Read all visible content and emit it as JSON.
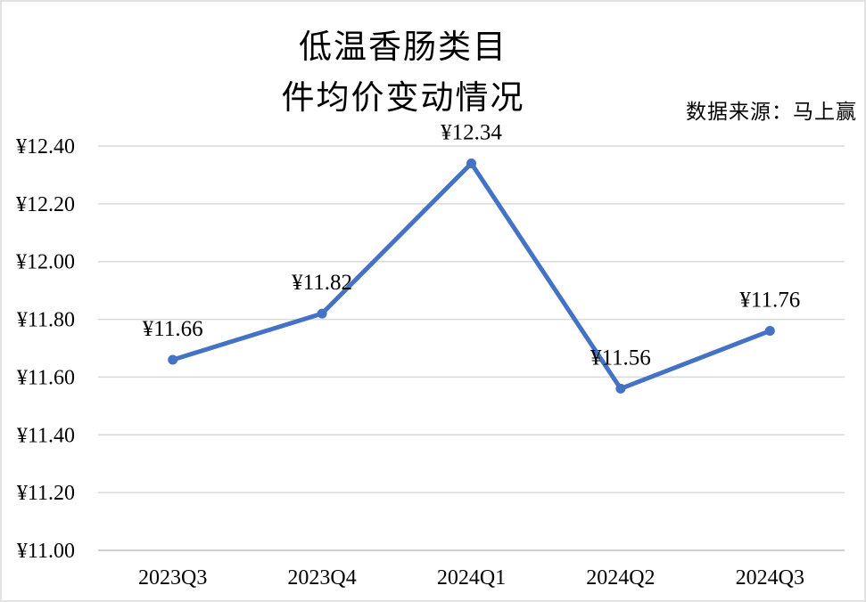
{
  "chart_data": {
    "type": "line",
    "title_lines": [
      "低温香肠类目",
      "件均价变动情况"
    ],
    "source": "数据来源：马上赢",
    "categories": [
      "2023Q3",
      "2023Q4",
      "2024Q1",
      "2024Q2",
      "2024Q3"
    ],
    "values": [
      11.66,
      11.82,
      12.34,
      11.56,
      11.76
    ],
    "data_labels": [
      "¥11.66",
      "¥11.82",
      "¥12.34",
      "¥11.56",
      "¥11.76"
    ],
    "y_ticks": [
      "¥11.00",
      "¥11.20",
      "¥11.40",
      "¥11.60",
      "¥11.80",
      "¥12.00",
      "¥12.20",
      "¥12.40"
    ],
    "ylim": [
      11.0,
      12.4
    ],
    "y_step": 0.2,
    "grid": true,
    "legend_position": "none",
    "line_color": "#4472C4",
    "marker_color": "#4472C4",
    "gridline_color": "#D9D9D9",
    "axis_line_color": "#BFBFBF",
    "text_color": "#000000"
  }
}
